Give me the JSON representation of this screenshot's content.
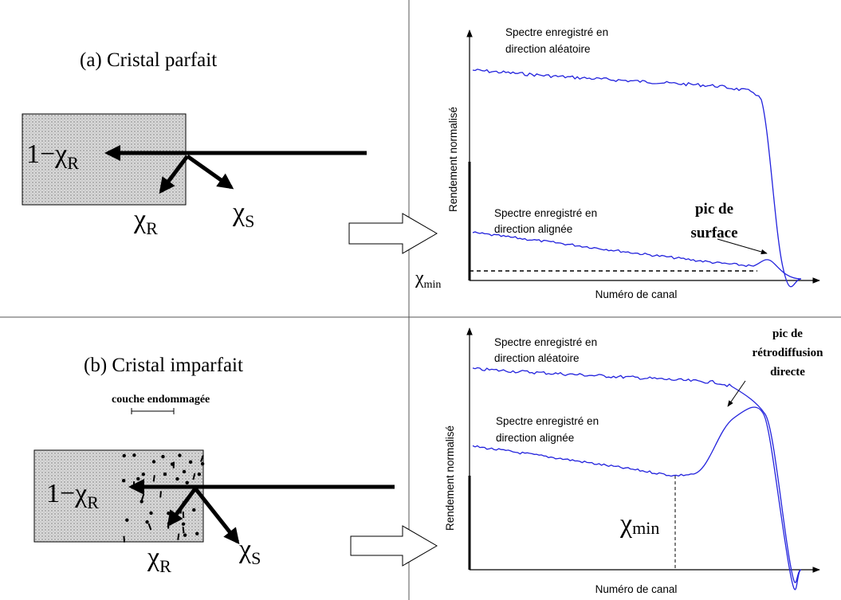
{
  "panels": [
    {
      "title": "(a) Cristal parfait",
      "incident": {
        "main": "1−χ",
        "sub": "R"
      },
      "reflected": {
        "main": "χ",
        "sub": "R"
      },
      "scattered": {
        "main": "χ",
        "sub": "S"
      },
      "random_label": [
        "Spectre enregistré en",
        "direction aléatoire"
      ],
      "aligned_label": [
        "Spectre enregistré en",
        "direction alignée"
      ],
      "peak_label": [
        "pic de",
        "surface"
      ],
      "y_axis_label": "Rendement normalisé",
      "x_axis_label": "Numéro de canal",
      "chi_min": {
        "main": "χ",
        "sub": "min"
      }
    },
    {
      "title": "(b) Cristal imparfait",
      "damaged_layer": "couche endommagée",
      "incident": {
        "main": "1−χ",
        "sub": "R"
      },
      "reflected": {
        "main": "χ",
        "sub": "R"
      },
      "scattered": {
        "main": "χ",
        "sub": "S"
      },
      "random_label": [
        "Spectre enregistré en",
        "direction aléatoire"
      ],
      "aligned_label": [
        "Spectre enregistré en",
        "direction alignée"
      ],
      "peak_label": [
        "pic de",
        "rétrodiffusion",
        "directe"
      ],
      "y_axis_label": "Rendement normalisé",
      "x_axis_label": "Numéro de canal",
      "chi_min": {
        "main": "χ",
        "sub": "min"
      }
    }
  ]
}
